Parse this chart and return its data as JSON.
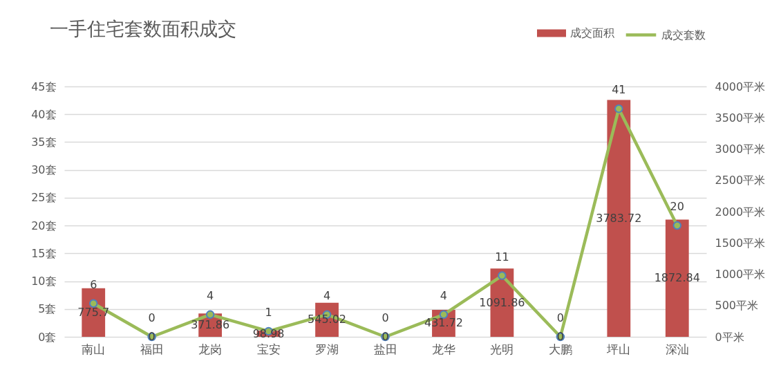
{
  "chart_data": {
    "type": "bar",
    "title": "一手住宅套数面积成交",
    "categories": [
      "南山",
      "福田",
      "龙岗",
      "宝安",
      "罗湖",
      "盐田",
      "龙华",
      "光明",
      "大鹏",
      "坪山",
      "深汕"
    ],
    "series": [
      {
        "name": "成交面积",
        "axis": "y2",
        "color": "#c0504d",
        "values": [
          775.7,
          0,
          371.86,
          98.98,
          545.02,
          0,
          431.72,
          1091.86,
          0,
          3783.72,
          1872.84
        ]
      },
      {
        "name": "成交套数",
        "type": "line",
        "axis": "y",
        "color": "#9bbb59",
        "values": [
          6,
          0,
          4,
          1,
          4,
          0,
          4,
          11,
          0,
          41,
          20
        ]
      }
    ],
    "ylim": [
      0,
      45
    ],
    "yticks": [
      {
        "value": 0,
        "label": "0套"
      },
      {
        "value": 5,
        "label": "5套"
      },
      {
        "value": 10,
        "label": "10套"
      },
      {
        "value": 15,
        "label": "15套"
      },
      {
        "value": 20,
        "label": "20套"
      },
      {
        "value": 25,
        "label": "25套"
      },
      {
        "value": 30,
        "label": "30套"
      },
      {
        "value": 35,
        "label": "35套"
      },
      {
        "value": 40,
        "label": "40套"
      },
      {
        "value": 45,
        "label": "45套"
      }
    ],
    "y2lim": [
      0,
      4000
    ],
    "y2ticks": [
      {
        "value": 0,
        "label": "0平米"
      },
      {
        "value": 500,
        "label": "500平米"
      },
      {
        "value": 1000,
        "label": "1000平米"
      },
      {
        "value": 1500,
        "label": "1500平米"
      },
      {
        "value": 2000,
        "label": "2000平米"
      },
      {
        "value": 2500,
        "label": "2500平米"
      },
      {
        "value": 3000,
        "label": "3000平米"
      },
      {
        "value": 3500,
        "label": "3500平米"
      },
      {
        "value": 4000,
        "label": "4000平米"
      }
    ],
    "grid": "y",
    "legend": "top right",
    "data_labels": true,
    "marker": "circle",
    "line_style": "solid"
  }
}
